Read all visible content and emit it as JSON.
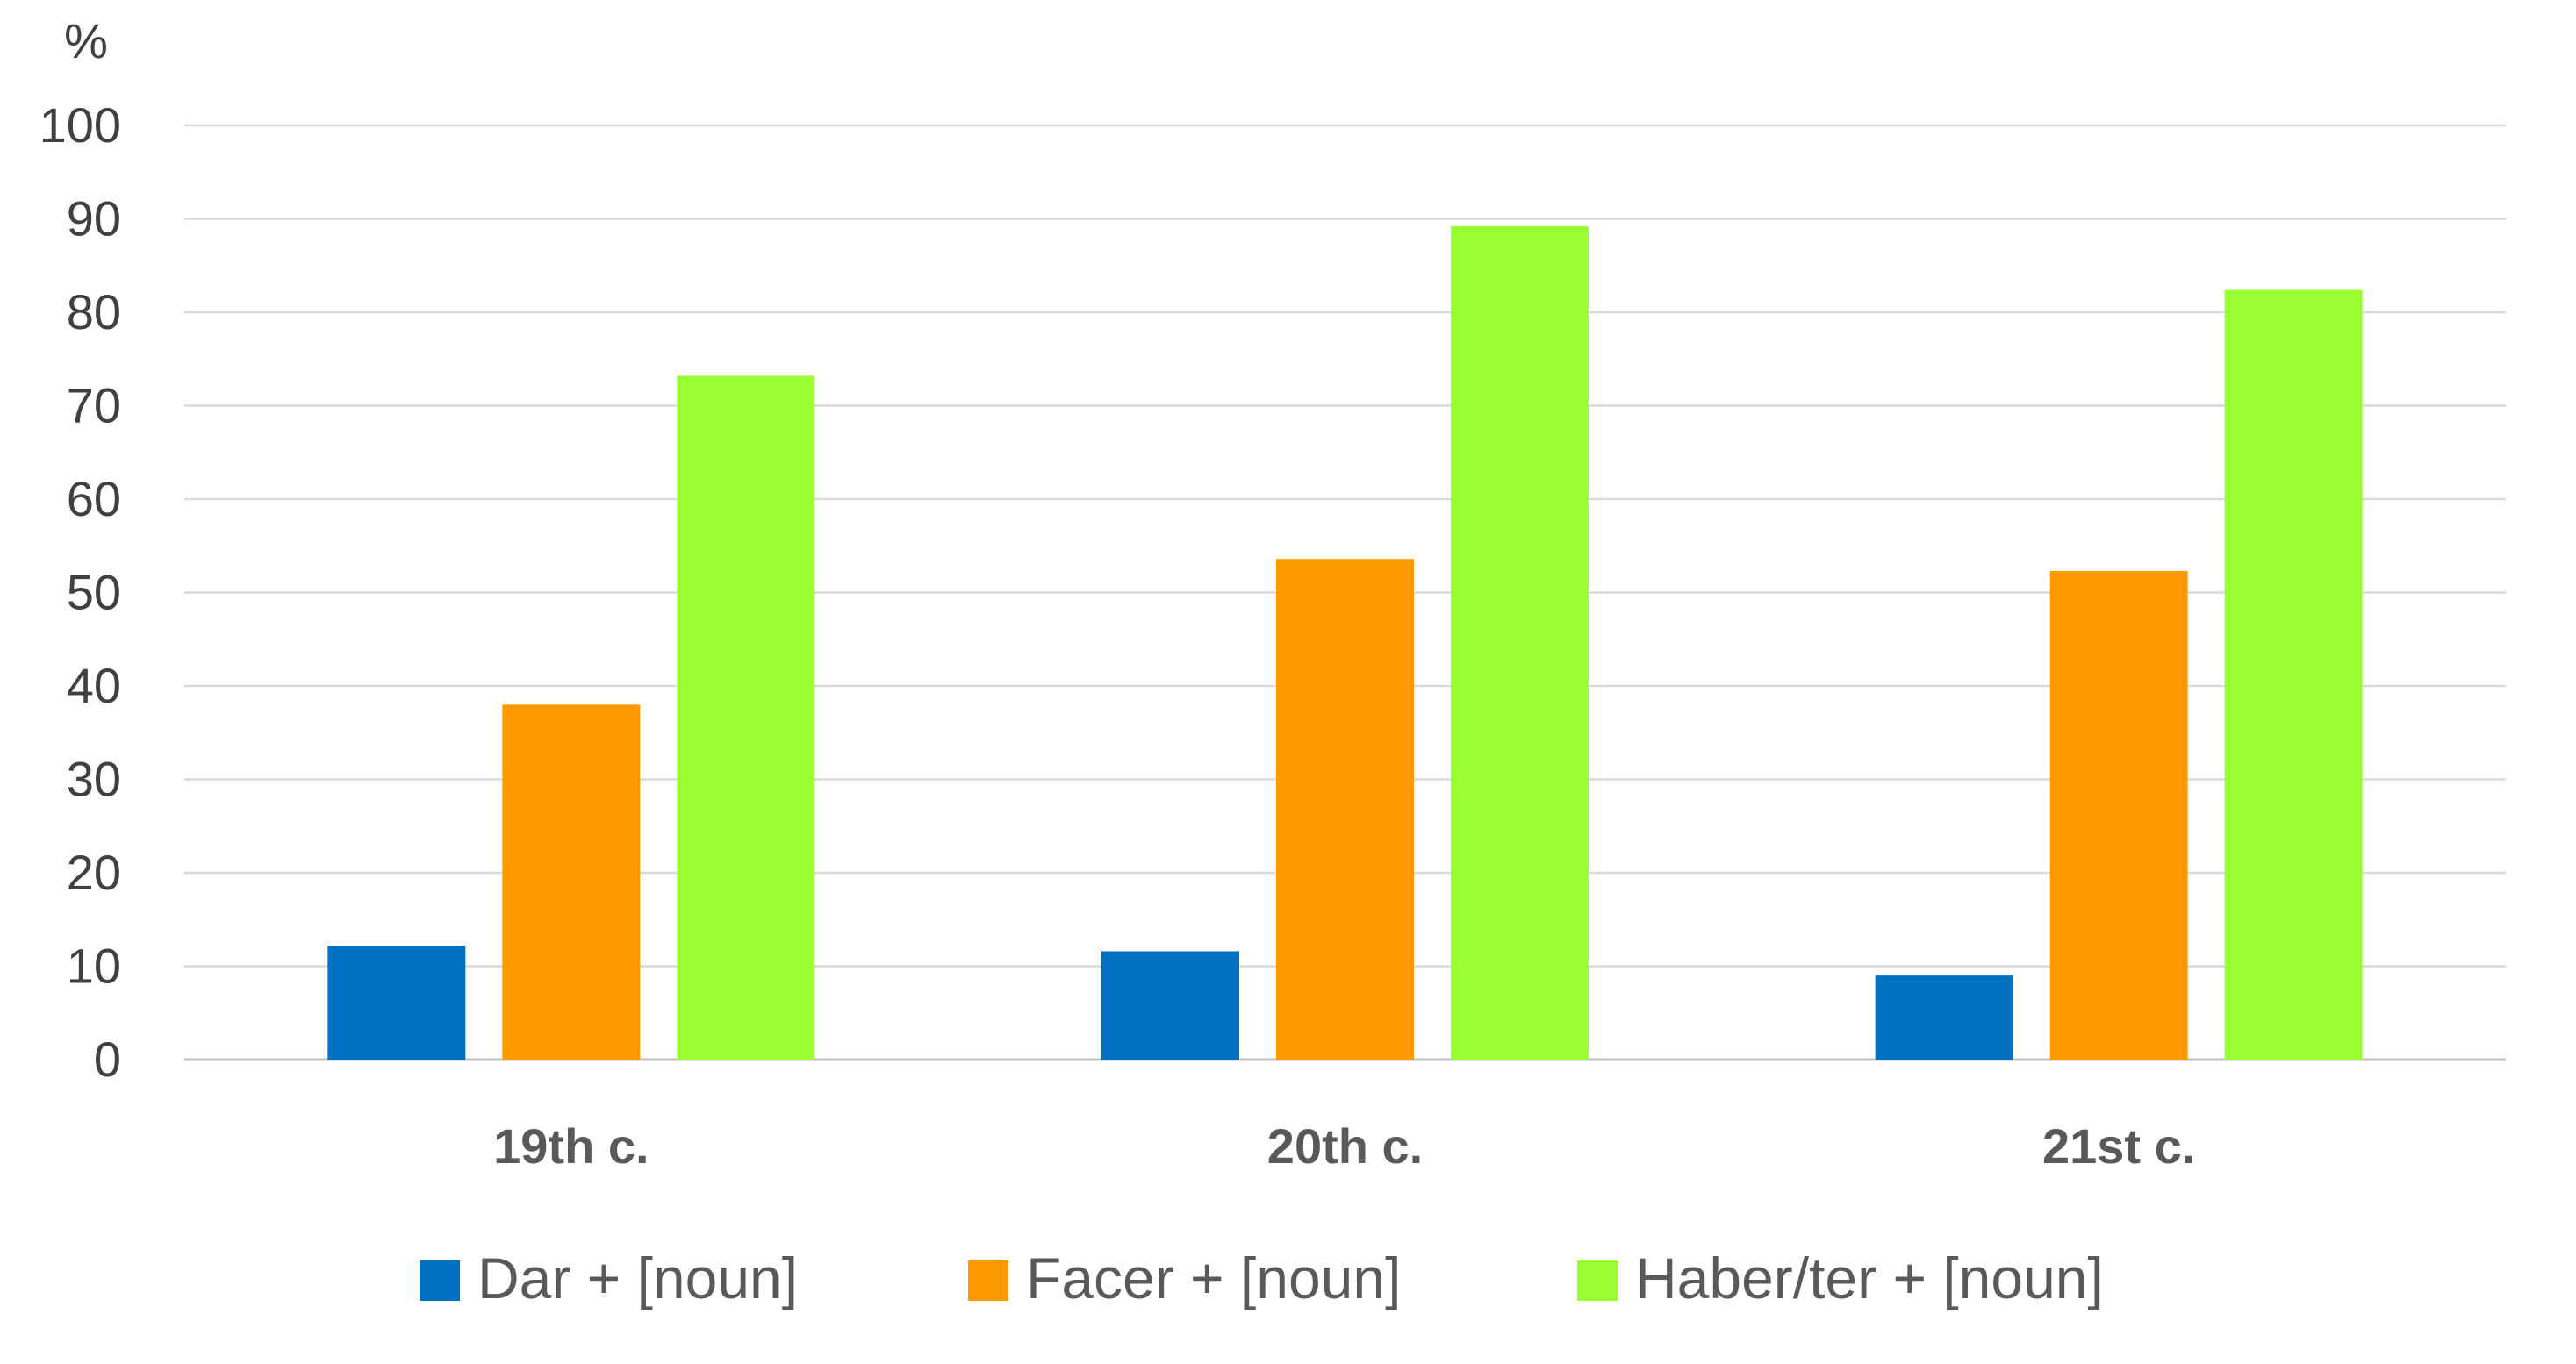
{
  "chart_data": {
    "type": "bar",
    "title": "",
    "xlabel": "",
    "ylabel": "%",
    "ylim": [
      0,
      100
    ],
    "yticks": [
      0,
      10,
      20,
      30,
      40,
      50,
      60,
      70,
      80,
      90,
      100
    ],
    "grid": true,
    "legend_position": "bottom",
    "categories": [
      "19th c.",
      "20th c.",
      "21st c."
    ],
    "series": [
      {
        "name": "Dar + [noun]",
        "color": "#0070C0",
        "values": [
          12.2,
          11.6,
          9.0
        ]
      },
      {
        "name": "Facer + [noun]",
        "color": "#FF9900",
        "values": [
          38,
          53.6,
          52.3
        ]
      },
      {
        "name": "Haber/ter + [noun]",
        "color": "#99FF33",
        "values": [
          73.2,
          89.2,
          82.4
        ]
      }
    ]
  }
}
